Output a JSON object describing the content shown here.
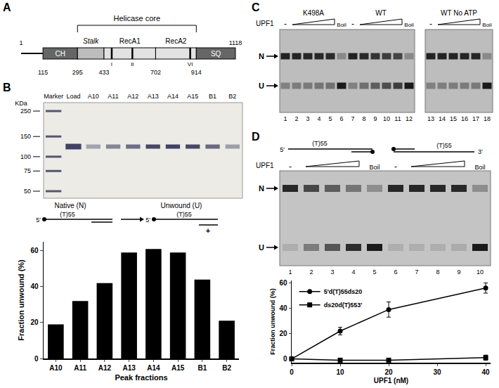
{
  "panel_labels": [
    "A",
    "B",
    "C",
    "D"
  ],
  "domain_diagram": {
    "bracket_label": "Helicase core",
    "domains": [
      "CH",
      "Stalk",
      "RecA1",
      "RecA2",
      "SQ"
    ],
    "positions": [
      1,
      115,
      295,
      433,
      702,
      914,
      1118
    ],
    "motifs": [
      "I",
      "II",
      "VI"
    ]
  },
  "protein_gel": {
    "unit_label": "KDa",
    "markers": [
      250,
      150,
      100,
      75,
      50
    ],
    "lanes": [
      "Marker",
      "Load",
      "A10",
      "A11",
      "A12",
      "A13",
      "A14",
      "A15",
      "B1",
      "B2"
    ]
  },
  "substrate_scheme": {
    "native_label": "Native (N)",
    "unwound_label": "Unwound (U)",
    "end_label": "5'",
    "strand_label": "(T)55",
    "plus_label": "+"
  },
  "unwinding_gel": {
    "protein_label": "UPF1",
    "minus_label": "-",
    "boil_label": "Boil",
    "band_labels": [
      "N",
      "U"
    ],
    "groups": [
      {
        "label": "K498A",
        "lanes": [
          1,
          2,
          3,
          4,
          5,
          6
        ]
      },
      {
        "label": "WT",
        "lanes": [
          7,
          8,
          9,
          10,
          11,
          12
        ]
      },
      {
        "label": "WT No ATP",
        "lanes": [
          13,
          14,
          15,
          16,
          17,
          18
        ]
      }
    ]
  },
  "polarity_gel": {
    "protein_label": "UPF1",
    "minus_label": "-",
    "boil_label": "Boil",
    "band_labels": [
      "N",
      "U"
    ],
    "substrates": [
      {
        "start_label": "5'",
        "strand_label": "(T)55",
        "lanes": [
          1,
          2,
          3,
          4,
          5
        ]
      },
      {
        "strand_label": "(T)55",
        "end_label": "3'",
        "lanes": [
          6,
          7,
          8,
          9,
          10
        ]
      }
    ]
  },
  "chart_data": [
    {
      "type": "bar",
      "categories": [
        "A10",
        "A11",
        "A12",
        "A13",
        "A14",
        "A15",
        "B1",
        "B2"
      ],
      "values": [
        19,
        32,
        42,
        59,
        61,
        59,
        44,
        21
      ],
      "color": "#000000",
      "xlabel": "Peak fractions",
      "ylabel": "Fraction unwound (%)",
      "ylim": [
        0,
        65
      ],
      "yticks": [
        0,
        20,
        40,
        60
      ],
      "grid": false
    },
    {
      "type": "line",
      "x": [
        0,
        10,
        20,
        40
      ],
      "series": [
        {
          "name": "5'd(T)55ds20",
          "color": "#000000",
          "marker": "circle",
          "values": [
            0,
            22,
            39,
            56
          ],
          "errors": [
            0,
            3,
            6,
            4
          ]
        },
        {
          "name": "ds20d(T)553'",
          "color": "#000000",
          "marker": "square",
          "values": [
            0,
            -1,
            -1,
            1
          ],
          "errors": [
            0,
            1,
            1,
            2
          ]
        }
      ],
      "xlabel": "UPF1 (nM)",
      "ylabel": "Fraction unwound (%)",
      "xlim": [
        0,
        41
      ],
      "xticks": [
        0,
        10,
        20,
        30,
        40
      ],
      "ylim": [
        -3,
        62
      ],
      "yticks": [
        0,
        20,
        40,
        60
      ],
      "legend": "top left",
      "grid": false
    }
  ]
}
